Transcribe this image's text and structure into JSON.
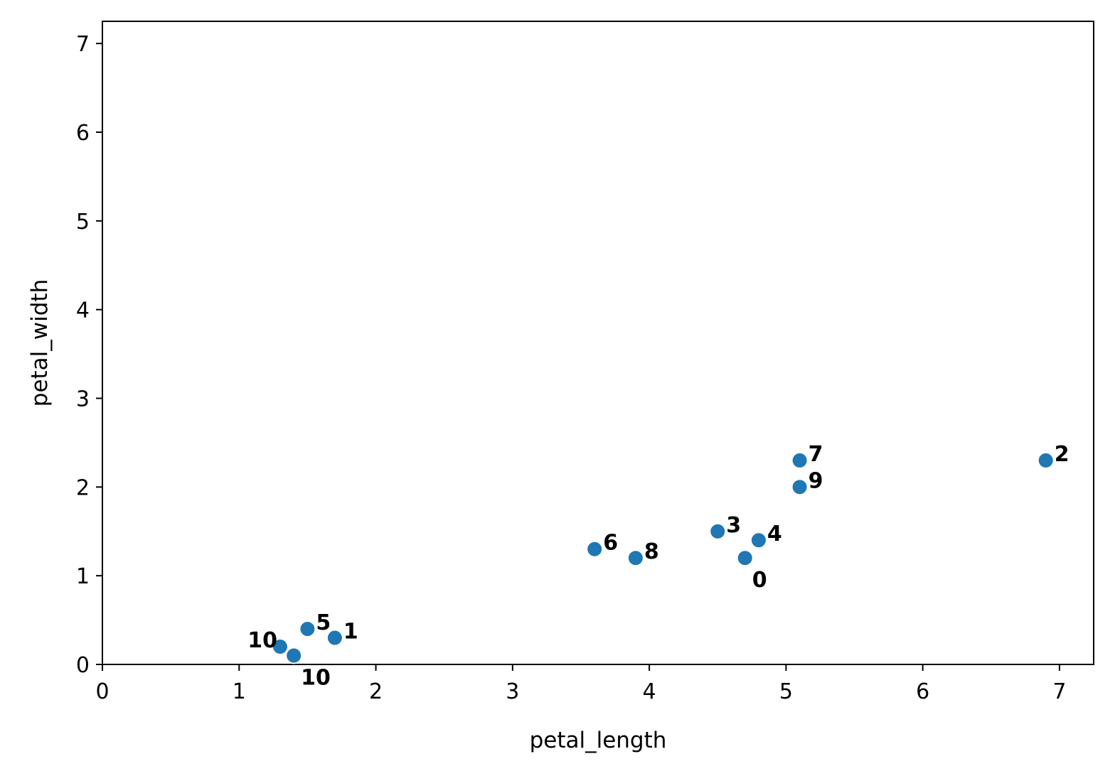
{
  "chart_data": {
    "type": "scatter",
    "title": "",
    "xlabel": "petal_length",
    "ylabel": "petal_width",
    "xlim": [
      0,
      7.25
    ],
    "ylim": [
      0,
      7.25
    ],
    "xticks": [
      0,
      1,
      2,
      3,
      4,
      5,
      6,
      7
    ],
    "yticks": [
      0,
      1,
      2,
      3,
      4,
      5,
      6,
      7
    ],
    "grid": false,
    "legend": "none",
    "marker_color": "#1f77b4",
    "points": [
      {
        "x": 4.7,
        "y": 1.2,
        "label": "0",
        "label_pos": "below-right"
      },
      {
        "x": 1.7,
        "y": 0.3,
        "label": "1",
        "label_pos": "right"
      },
      {
        "x": 6.9,
        "y": 2.3,
        "label": "2",
        "label_pos": "right"
      },
      {
        "x": 4.5,
        "y": 1.5,
        "label": "3",
        "label_pos": "right"
      },
      {
        "x": 4.8,
        "y": 1.4,
        "label": "4",
        "label_pos": "right"
      },
      {
        "x": 1.5,
        "y": 0.4,
        "label": "5",
        "label_pos": "right"
      },
      {
        "x": 3.6,
        "y": 1.3,
        "label": "6",
        "label_pos": "right"
      },
      {
        "x": 5.1,
        "y": 2.3,
        "label": "7",
        "label_pos": "right"
      },
      {
        "x": 3.9,
        "y": 1.2,
        "label": "8",
        "label_pos": "right"
      },
      {
        "x": 5.1,
        "y": 2.0,
        "label": "9",
        "label_pos": "right"
      },
      {
        "x": 1.3,
        "y": 0.2,
        "label": "10",
        "label_pos": "left"
      },
      {
        "x": 1.4,
        "y": 0.1,
        "label": "10",
        "label_pos": "below-right"
      }
    ]
  }
}
